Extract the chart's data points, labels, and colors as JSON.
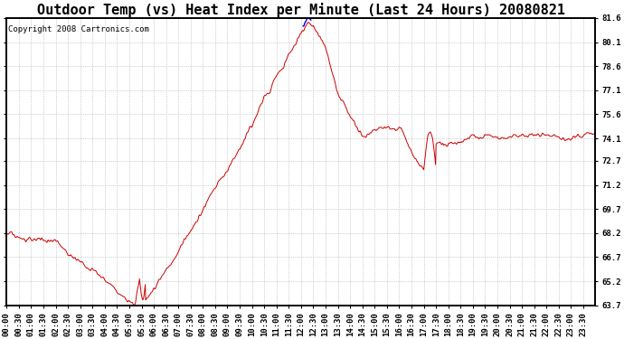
{
  "title": "Outdoor Temp (vs) Heat Index per Minute (Last 24 Hours) 20080821",
  "copyright": "Copyright 2008 Cartronics.com",
  "ylabel_right": [
    "81.6",
    "80.1",
    "78.6",
    "77.1",
    "75.6",
    "74.1",
    "72.7",
    "71.2",
    "69.7",
    "68.2",
    "66.7",
    "65.2",
    "63.7"
  ],
  "y_min": 63.7,
  "y_max": 81.6,
  "bg_color": "#ffffff",
  "grid_color": "#aaaaaa",
  "line_color_red": "#cc0000",
  "line_color_blue": "#0000dd",
  "title_fontsize": 11,
  "copyright_fontsize": 6.5,
  "tick_fontsize": 6.5
}
